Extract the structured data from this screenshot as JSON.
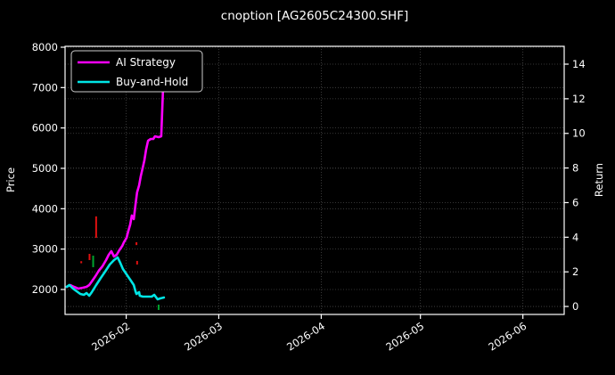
{
  "window": {
    "title": "cnoption [AG2605C24300.SHF]"
  },
  "chart_data": {
    "type": "line",
    "title": "cnoption [AG2605C24300.SHF]",
    "background_color": "#000000",
    "foreground_color": "#ffffff",
    "grid": true,
    "grid_color": "#474747",
    "x_axis": {
      "tick_labels": [
        "2026-02",
        "2026-03",
        "2026-04",
        "2026-05",
        "2026-06"
      ],
      "tick_day_offsets": [
        18.5,
        46.5,
        77.5,
        107.5,
        138.5
      ],
      "total_days": 151,
      "label_rotation_deg": -33
    },
    "left_axis": {
      "label": "Price",
      "ticks": [
        2000,
        3000,
        4000,
        5000,
        6000,
        7000,
        8000
      ],
      "range": [
        1382,
        8022
      ]
    },
    "right_axis": {
      "label": "Return",
      "ticks": [
        0,
        2,
        4,
        6,
        8,
        10,
        12,
        14
      ],
      "range": [
        -0.46,
        15.03
      ]
    },
    "legend": {
      "position": "upper-left",
      "entries": [
        "AI Strategy",
        "Buy-and-Hold"
      ]
    },
    "series": [
      {
        "name": "AI Strategy",
        "color": "#ff00ff",
        "axis": "price",
        "points": [
          [
            0.5,
            2066
          ],
          [
            1.6,
            2110
          ],
          [
            2.7,
            2066
          ],
          [
            4.0,
            2022
          ],
          [
            5.4,
            2044
          ],
          [
            6.5,
            2066
          ],
          [
            7.3,
            2110
          ],
          [
            8.1,
            2199
          ],
          [
            9.2,
            2331
          ],
          [
            10.2,
            2463
          ],
          [
            11.3,
            2574
          ],
          [
            12.4,
            2728
          ],
          [
            13.2,
            2860
          ],
          [
            14.0,
            2949
          ],
          [
            14.8,
            2816
          ],
          [
            15.6,
            2860
          ],
          [
            16.4,
            2971
          ],
          [
            17.3,
            3081
          ],
          [
            17.8,
            3169
          ],
          [
            18.6,
            3279
          ],
          [
            19.1,
            3434
          ],
          [
            19.7,
            3610
          ],
          [
            20.2,
            3831
          ],
          [
            20.8,
            3743
          ],
          [
            21.3,
            4096
          ],
          [
            21.8,
            4404
          ],
          [
            22.4,
            4581
          ],
          [
            22.9,
            4801
          ],
          [
            23.5,
            5022
          ],
          [
            24.0,
            5199
          ],
          [
            24.5,
            5463
          ],
          [
            25.1,
            5684
          ],
          [
            25.9,
            5728
          ],
          [
            26.7,
            5728
          ],
          [
            27.2,
            5794
          ],
          [
            28.3,
            5772
          ],
          [
            29.1,
            5794
          ],
          [
            29.7,
            7073
          ],
          [
            29.9,
            7779
          ]
        ]
      },
      {
        "name": "Buy-and-Hold",
        "color": "#00e5e5",
        "axis": "price",
        "points": [
          [
            0.5,
            2066
          ],
          [
            1.3,
            2110
          ],
          [
            2.4,
            2022
          ],
          [
            3.5,
            1956
          ],
          [
            4.6,
            1890
          ],
          [
            5.7,
            1868
          ],
          [
            6.5,
            1912
          ],
          [
            7.3,
            1846
          ],
          [
            8.1,
            1934
          ],
          [
            9.4,
            2110
          ],
          [
            10.8,
            2287
          ],
          [
            12.1,
            2441
          ],
          [
            13.5,
            2618
          ],
          [
            14.8,
            2728
          ],
          [
            15.9,
            2794
          ],
          [
            16.7,
            2662
          ],
          [
            17.5,
            2507
          ],
          [
            18.6,
            2375
          ],
          [
            19.9,
            2221
          ],
          [
            20.8,
            2110
          ],
          [
            21.3,
            1956
          ],
          [
            21.6,
            1890
          ],
          [
            22.4,
            1934
          ],
          [
            22.6,
            1846
          ],
          [
            23.5,
            1824
          ],
          [
            25.1,
            1824
          ],
          [
            26.2,
            1824
          ],
          [
            27.0,
            1868
          ],
          [
            28.0,
            1757
          ],
          [
            28.8,
            1779
          ],
          [
            29.9,
            1801
          ]
        ]
      }
    ],
    "trade_marks": [
      {
        "kind": "sell-signal",
        "color": "#e01010",
        "d": 9.4,
        "price_from": 3810,
        "price_to": 3280
      },
      {
        "kind": "sell-signal",
        "color": "#e01010",
        "d": 4.9,
        "price_from": 2700,
        "price_to": 2650
      },
      {
        "kind": "sell-signal",
        "color": "#e01010",
        "d": 7.4,
        "price_from": 2882,
        "price_to": 2728
      },
      {
        "kind": "buy-signal",
        "color": "#00a32e",
        "d": 8.5,
        "price_from": 2838,
        "price_to": 2552
      },
      {
        "kind": "sell-signal",
        "color": "#e01010",
        "d": 21.6,
        "price_from": 3170,
        "price_to": 3100
      },
      {
        "kind": "sell-signal",
        "color": "#e01010",
        "d": 21.8,
        "price_from": 2707,
        "price_to": 2618
      },
      {
        "kind": "buy-signal",
        "color": "#00a32e",
        "d": 28.3,
        "price_from": 1625,
        "price_to": 1493
      }
    ]
  }
}
